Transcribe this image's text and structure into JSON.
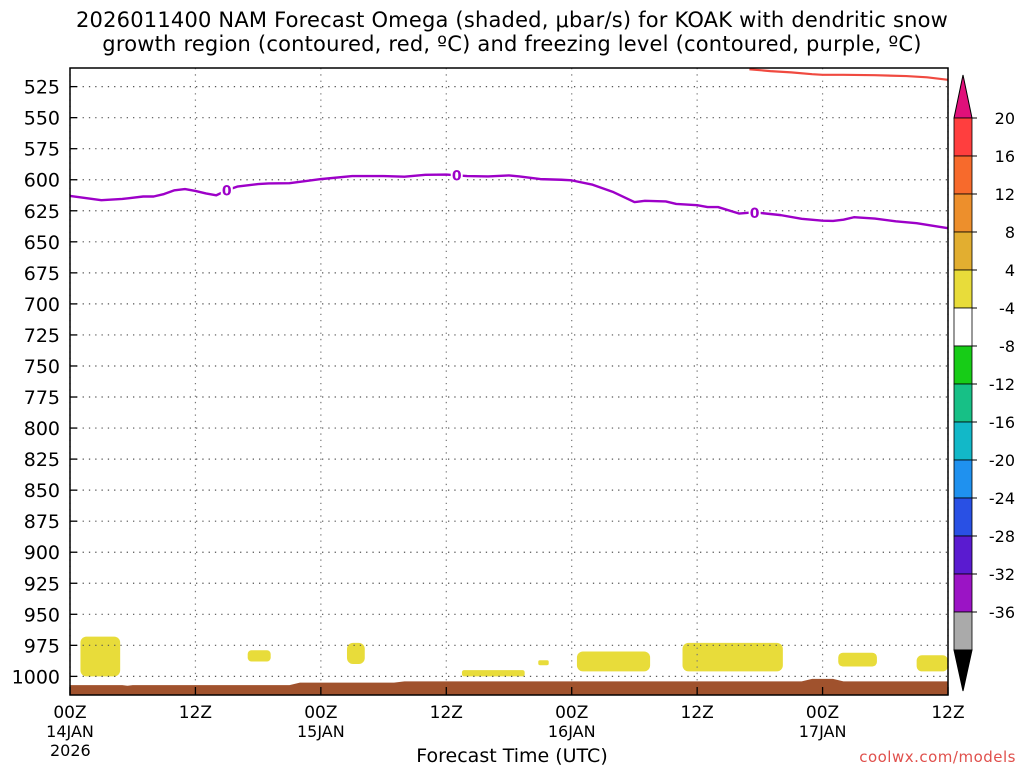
{
  "chart_data": {
    "type": "heatmap",
    "title_line1": "2026011400 NAM Forecast Omega (shaded, μbar/s) for KOAK with dendritic snow",
    "title_line2": "growth region (contoured, red, ºC) and freezing level (contoured, purple, ºC)",
    "xlabel": "Forecast Time (UTC)",
    "ylabel": "",
    "watermark": "coolwx.com/models",
    "x_range_hours": [
      0,
      84
    ],
    "y_range_hpa": [
      510,
      1015
    ],
    "y_ticks": [
      525,
      550,
      575,
      600,
      625,
      650,
      675,
      700,
      725,
      750,
      775,
      800,
      825,
      850,
      875,
      900,
      925,
      950,
      975,
      1000
    ],
    "x_ticks": [
      {
        "hour": 0,
        "label": "00Z",
        "sub": "14JAN",
        "sub2": "2026"
      },
      {
        "hour": 12,
        "label": "12Z",
        "sub": "",
        "sub2": ""
      },
      {
        "hour": 24,
        "label": "00Z",
        "sub": "15JAN",
        "sub2": ""
      },
      {
        "hour": 36,
        "label": "12Z",
        "sub": "",
        "sub2": ""
      },
      {
        "hour": 48,
        "label": "00Z",
        "sub": "16JAN",
        "sub2": ""
      },
      {
        "hour": 60,
        "label": "12Z",
        "sub": "",
        "sub2": ""
      },
      {
        "hour": 72,
        "label": "00Z",
        "sub": "17JAN",
        "sub2": ""
      },
      {
        "hour": 84,
        "label": "12Z",
        "sub": "",
        "sub2": ""
      }
    ],
    "grid": true,
    "freezing_level": {
      "name": "freezing level (0 ºC)",
      "color": "#9d00c8",
      "label": "0",
      "label_hours": [
        15,
        37,
        65.5
      ],
      "hours": [
        0,
        3,
        5,
        7,
        8,
        9,
        10,
        11,
        12,
        13,
        14,
        15,
        16,
        17,
        18,
        19,
        21,
        24,
        27,
        30,
        32,
        34,
        36,
        38,
        40,
        42,
        43,
        45,
        47,
        48,
        50,
        52,
        54,
        55,
        57,
        58,
        60,
        61,
        62,
        64,
        65,
        66,
        68,
        70,
        72,
        73,
        74,
        75,
        77,
        79,
        81,
        84
      ],
      "pressure": [
        613,
        616.5,
        615.5,
        613.5,
        613.5,
        611.5,
        608.5,
        607.5,
        609,
        611,
        612.5,
        608.5,
        605.5,
        604.5,
        603.5,
        603,
        602.8,
        599.5,
        597,
        597,
        597.5,
        596,
        595.8,
        597,
        597.3,
        596.5,
        597.3,
        599.5,
        600,
        600.5,
        604,
        610,
        618,
        617,
        617.5,
        619.5,
        620.5,
        622,
        622,
        627.2,
        626.5,
        626.7,
        628.5,
        631.5,
        633,
        633.2,
        632.2,
        630.2,
        631.3,
        633.5,
        635,
        639
      ]
    },
    "dgz_contour": {
      "name": "dendritic snow growth region",
      "color": "#f04a40",
      "hours": [
        65,
        67,
        69,
        71,
        72,
        74,
        77,
        80,
        82,
        84
      ],
      "pressure": [
        511,
        512.5,
        513.5,
        515,
        515.5,
        515.5,
        515.8,
        516.5,
        517.5,
        519.5
      ]
    },
    "omega_regions": [
      {
        "value": "4 to 8",
        "color": "#e8dc3a",
        "hours": [
          1.0,
          4.8
        ],
        "pressure": [
          968,
          1000
        ]
      },
      {
        "value": "4 to 8",
        "color": "#e8dc3a",
        "hours": [
          17.0,
          19.2
        ],
        "pressure": [
          979,
          988
        ]
      },
      {
        "value": "4 to 8",
        "color": "#e8dc3a",
        "hours": [
          26.5,
          28.2
        ],
        "pressure": [
          973,
          990
        ]
      },
      {
        "value": "4 to 8",
        "color": "#e8dc3a",
        "hours": [
          37.5,
          43.5
        ],
        "pressure": [
          995,
          1000
        ]
      },
      {
        "value": "4 to 8",
        "color": "#e8dc3a",
        "hours": [
          44.8,
          45.8
        ],
        "pressure": [
          987,
          991
        ]
      },
      {
        "value": "4 to 8",
        "color": "#e8dc3a",
        "hours": [
          48.5,
          55.5
        ],
        "pressure": [
          980,
          996
        ]
      },
      {
        "value": "4 to 8",
        "color": "#e8dc3a",
        "hours": [
          58.6,
          68.2
        ],
        "pressure": [
          973,
          996
        ]
      },
      {
        "value": "4 to 8",
        "color": "#e8dc3a",
        "hours": [
          73.5,
          77.2
        ],
        "pressure": [
          981,
          992
        ]
      },
      {
        "value": "4 to 8",
        "color": "#e8dc3a",
        "hours": [
          81.0,
          84.0
        ],
        "pressure": [
          983,
          996
        ]
      }
    ],
    "terrain": {
      "color": "#a0522d",
      "hours": [
        0,
        5,
        5.5,
        6,
        21,
        22,
        31,
        32,
        43,
        44,
        60,
        70,
        71,
        73,
        74,
        84
      ],
      "pressure": [
        1007,
        1007,
        1007.5,
        1007,
        1007,
        1005,
        1005,
        1004,
        1004,
        1004,
        1004,
        1004,
        1002,
        1002,
        1004,
        1004
      ]
    },
    "colorbar": {
      "tick_labels": [
        "20",
        "16",
        "12",
        "8",
        "4",
        "-4",
        "-8",
        "-12",
        "-16",
        "-20",
        "-24",
        "-28",
        "-32",
        "-36"
      ],
      "colors": [
        "#ff3e3e",
        "#f76a2c",
        "#ed8f2c",
        "#e2ae30",
        "#e8dc3a",
        "#ffffff",
        "#17cc17",
        "#17c086",
        "#12b8c8",
        "#1f91ef",
        "#2950e4",
        "#5a1bd0",
        "#9b14c5",
        "#aaaaaa"
      ],
      "top_arrow_color": "#e0107a",
      "bottom_arrow_color": "#000000"
    }
  }
}
